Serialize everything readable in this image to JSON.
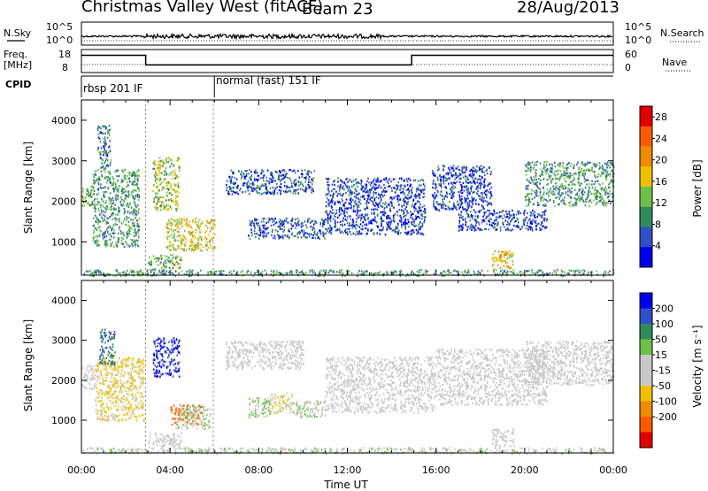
{
  "header": {
    "station": "Christmas Valley West (fitACF)",
    "beam": "Beam 23",
    "date": "28/Aug/2013"
  },
  "strips": {
    "nsky_label": "N.Sky",
    "nsearch_label": "N.Search",
    "nsky_ticks": [
      "10^5",
      "10^0"
    ],
    "nsearch_ticks": [
      "10^5",
      "10^0"
    ],
    "freq_label": "Freq.",
    "freq_unit": "[MHz]",
    "freq_ticks": [
      "18",
      "8"
    ],
    "nave_label": "Nave",
    "nave_ticks": [
      "60",
      "0"
    ],
    "cpid_label": "CPID",
    "cpid_segments": [
      {
        "label": "rbsp 201 IF",
        "start_hour": 0.0,
        "end_hour": 6.0
      },
      {
        "label": "normal (fast) 151 IF",
        "start_hour": 6.0,
        "end_hour": 24.0
      }
    ],
    "freq_steps": [
      {
        "start_hour": 0.0,
        "end_hour": 2.9,
        "freq_mhz": 15.5
      },
      {
        "start_hour": 2.9,
        "end_hour": 14.9,
        "freq_mhz": 11.3
      },
      {
        "start_hour": 14.9,
        "end_hour": 24.0,
        "freq_mhz": 15.5
      }
    ]
  },
  "chart_data": [
    {
      "type": "heatmap",
      "name": "power",
      "ylabel": "Slant Range [km]",
      "ylim": [
        180,
        4500
      ],
      "y_ticks": [
        1000,
        2000,
        3000,
        4000
      ],
      "xlim": [
        0,
        24
      ],
      "colorbar_label": "Power [dB]",
      "colorbar_ticks": [
        4,
        8,
        12,
        16,
        20,
        24,
        28
      ],
      "colorbar_range": [
        0,
        30
      ],
      "colors": [
        "#0000ee",
        "#3050c8",
        "#2f8c5a",
        "#6fc04a",
        "#f0c000",
        "#f08a00",
        "#ff5a00",
        "#e00000"
      ],
      "regions": [
        {
          "t0": 0.0,
          "t1": 0.6,
          "r0": 1900,
          "r1": 2400,
          "level": 12
        },
        {
          "t0": 0.7,
          "t1": 1.3,
          "r0": 2800,
          "r1": 3900,
          "level": 8
        },
        {
          "t0": 0.5,
          "t1": 2.6,
          "r0": 900,
          "r1": 2800,
          "level": 10
        },
        {
          "t0": 3.2,
          "t1": 4.4,
          "r0": 1800,
          "r1": 3100,
          "level": 14
        },
        {
          "t0": 3.8,
          "t1": 6.0,
          "r0": 800,
          "r1": 1600,
          "level": 16
        },
        {
          "t0": 3.0,
          "t1": 4.5,
          "r0": 300,
          "r1": 700,
          "level": 12
        },
        {
          "t0": 6.5,
          "t1": 10.5,
          "r0": 2200,
          "r1": 2800,
          "level": 6
        },
        {
          "t0": 7.5,
          "t1": 9.0,
          "r0": 1100,
          "r1": 1600,
          "level": 6
        },
        {
          "t0": 9.0,
          "t1": 11.0,
          "r0": 1100,
          "r1": 1600,
          "level": 6
        },
        {
          "t0": 11.0,
          "t1": 15.5,
          "r0": 1200,
          "r1": 2600,
          "level": 5
        },
        {
          "t0": 15.8,
          "t1": 18.5,
          "r0": 1800,
          "r1": 2900,
          "level": 5
        },
        {
          "t0": 17.0,
          "t1": 21.0,
          "r0": 1300,
          "r1": 1800,
          "level": 5
        },
        {
          "t0": 18.5,
          "t1": 19.5,
          "r0": 350,
          "r1": 800,
          "level": 18
        },
        {
          "t0": 20.0,
          "t1": 24.0,
          "r0": 1900,
          "r1": 3000,
          "level": 10
        },
        {
          "t0": 0.0,
          "t1": 24.0,
          "r0": 180,
          "r1": 330,
          "level": 10
        }
      ]
    },
    {
      "type": "heatmap",
      "name": "velocity",
      "ylabel": "Slant Range [km]",
      "ylim": [
        180,
        4500
      ],
      "y_ticks": [
        1000,
        2000,
        3000,
        4000
      ],
      "xlim": [
        0,
        24
      ],
      "xlabel": "Time UT",
      "x_ticks": [
        "00:00",
        "04:00",
        "08:00",
        "12:00",
        "16:00",
        "20:00",
        "00:00"
      ],
      "x_tick_hours": [
        0,
        4,
        8,
        12,
        16,
        20,
        24
      ],
      "colorbar_label": "Velocity [m s⁻¹]",
      "colorbar_ticks": [
        200,
        100,
        50,
        15,
        -15,
        -50,
        -100,
        -200
      ],
      "colors": [
        "#e00000",
        "#ff5a00",
        "#f08a00",
        "#f0c000",
        "#c8c8c8",
        "#c8c8c8",
        "#6fc04a",
        "#2f8c5a",
        "#3050c8",
        "#0000ee"
      ],
      "regions": [
        {
          "t0": 0.0,
          "t1": 0.6,
          "r0": 1800,
          "r1": 2400,
          "level": 0
        },
        {
          "t0": 0.6,
          "t1": 2.8,
          "r0": 1000,
          "r1": 2600,
          "level": -60
        },
        {
          "t0": 0.8,
          "t1": 1.5,
          "r0": 2400,
          "r1": 3300,
          "level": 150
        },
        {
          "t0": 3.2,
          "t1": 4.4,
          "r0": 2100,
          "r1": 3100,
          "level": 200
        },
        {
          "t0": 4.0,
          "t1": 5.5,
          "r0": 900,
          "r1": 1400,
          "level": -150
        },
        {
          "t0": 4.2,
          "t1": 5.8,
          "r0": 800,
          "r1": 1400,
          "level": 30
        },
        {
          "t0": 3.0,
          "t1": 4.5,
          "r0": 300,
          "r1": 700,
          "level": 0
        },
        {
          "t0": 7.5,
          "t1": 8.5,
          "r0": 1100,
          "r1": 1600,
          "level": 60
        },
        {
          "t0": 8.5,
          "t1": 9.5,
          "r0": 1200,
          "r1": 1700,
          "level": -40
        },
        {
          "t0": 9.5,
          "t1": 11.0,
          "r0": 1100,
          "r1": 1500,
          "level": 40
        },
        {
          "t0": 6.5,
          "t1": 10.0,
          "r0": 2300,
          "r1": 3000,
          "level": 0
        },
        {
          "t0": 11.0,
          "t1": 16.0,
          "r0": 1200,
          "r1": 2600,
          "level": 10
        },
        {
          "t0": 16.0,
          "t1": 21.0,
          "r0": 1400,
          "r1": 2800,
          "level": 0
        },
        {
          "t0": 18.5,
          "t1": 19.5,
          "r0": 350,
          "r1": 800,
          "level": 0
        },
        {
          "t0": 20.0,
          "t1": 24.0,
          "r0": 1900,
          "r1": 3000,
          "level": 0
        },
        {
          "t0": 0.0,
          "t1": 24.0,
          "r0": 180,
          "r1": 330,
          "level": 30
        }
      ]
    }
  ]
}
